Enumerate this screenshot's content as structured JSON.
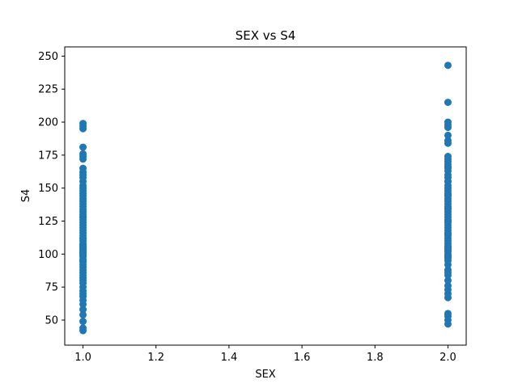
{
  "chart_data": {
    "type": "scatter",
    "title": "SEX vs S4",
    "xlabel": "SEX",
    "ylabel": "S4",
    "xlim": [
      0.95,
      2.05
    ],
    "ylim": [
      31,
      257
    ],
    "xticks": [
      "1.0",
      "1.2",
      "1.4",
      "1.6",
      "1.8",
      "2.0"
    ],
    "yticks": [
      "50",
      "75",
      "100",
      "125",
      "150",
      "175",
      "200",
      "225",
      "250"
    ],
    "grid": false,
    "marker_color": "#1f77b4",
    "series": [
      {
        "x": [
          1,
          1,
          1,
          1,
          1,
          1,
          1,
          1,
          1,
          1,
          1,
          1,
          1,
          1,
          1,
          1,
          1,
          1,
          1,
          1,
          1,
          1,
          1,
          1,
          1,
          1,
          1,
          1,
          1,
          1,
          1,
          1,
          1,
          1,
          1,
          1,
          1,
          1,
          1,
          1,
          1,
          1,
          1,
          1,
          1,
          1,
          1,
          1,
          1,
          1,
          1,
          1,
          1,
          1,
          1,
          1,
          1,
          1,
          1,
          1,
          1,
          1,
          1,
          1,
          1,
          1,
          1,
          1,
          1,
          1,
          2,
          2,
          2,
          2,
          2,
          2,
          2,
          2,
          2,
          2,
          2,
          2,
          2,
          2,
          2,
          2,
          2,
          2,
          2,
          2,
          2,
          2,
          2,
          2,
          2,
          2,
          2,
          2,
          2,
          2,
          2,
          2,
          2,
          2,
          2,
          2,
          2,
          2,
          2,
          2,
          2,
          2,
          2,
          2,
          2,
          2,
          2,
          2,
          2,
          2,
          2,
          2,
          2,
          2,
          2,
          2,
          2,
          2,
          2,
          2,
          2,
          2,
          2,
          2,
          2,
          2,
          2,
          2,
          2,
          2
        ],
        "y": [
          42,
          44,
          49,
          54,
          58,
          62,
          65,
          68,
          70,
          72,
          75,
          78,
          80,
          82,
          84,
          86,
          88,
          90,
          92,
          94,
          95,
          96,
          98,
          99,
          100,
          101,
          102,
          103,
          104,
          105,
          106,
          107,
          108,
          110,
          112,
          114,
          116,
          118,
          120,
          122,
          124,
          126,
          128,
          130,
          132,
          134,
          136,
          138,
          140,
          142,
          144,
          146,
          148,
          150,
          152,
          155,
          158,
          160,
          162,
          165,
          172,
          174,
          176,
          181,
          195,
          197,
          199,
          112,
          128,
          101,
          47,
          50,
          53,
          55,
          67,
          70,
          73,
          76,
          80,
          84,
          88,
          92,
          95,
          97,
          99,
          100,
          102,
          103,
          104,
          105,
          106,
          108,
          110,
          112,
          114,
          116,
          118,
          120,
          122,
          124,
          126,
          128,
          130,
          132,
          134,
          136,
          138,
          140,
          142,
          144,
          146,
          148,
          150,
          152,
          155,
          158,
          160,
          163,
          166,
          168,
          170,
          172,
          174,
          184,
          186,
          190,
          196,
          198,
          200,
          215,
          243,
          105,
          125,
          145,
          86,
          115,
          135,
          155,
          165,
          98
        ]
      }
    ]
  }
}
